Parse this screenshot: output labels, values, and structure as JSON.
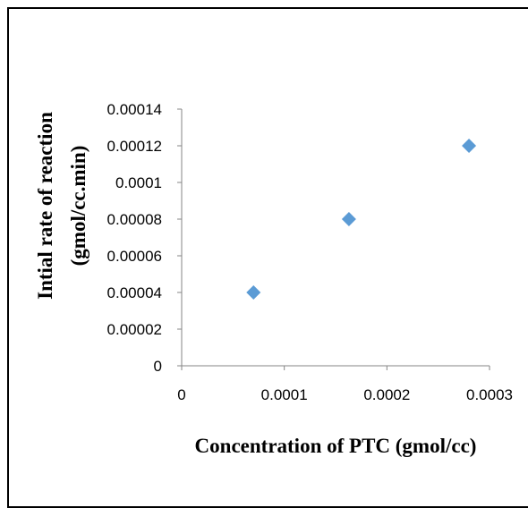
{
  "chart_data": {
    "type": "scatter",
    "title": "",
    "xlabel": "Concentration of PTC (gmol/cc)",
    "ylabel_line1": "Intial rate of reaction",
    "ylabel_line2": "(gmol/cc.min)",
    "xlim": [
      0,
      0.0003
    ],
    "ylim": [
      0,
      0.00014
    ],
    "x_ticks": [
      "0",
      "0.0001",
      "0.0002",
      "0.0003"
    ],
    "y_ticks": [
      "0",
      "0.00002",
      "0.00004",
      "0.00006",
      "0.00008",
      "0.0001",
      "0.00012",
      "0.00014"
    ],
    "grid": false,
    "legend": false,
    "marker": "diamond",
    "series": [
      {
        "x": [
          7e-05,
          0.000163,
          0.00028
        ],
        "y": [
          4e-05,
          8e-05,
          0.00012
        ]
      }
    ],
    "colors": {
      "marker": "#5b9bd5",
      "axis": "#868686"
    }
  }
}
